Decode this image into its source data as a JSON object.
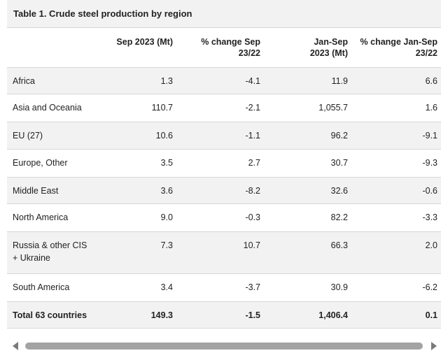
{
  "table": {
    "caption": "Table 1. Crude steel production by region",
    "headers": [
      "",
      "Sep 2023 (Mt)",
      "% change Sep 23/22",
      "Jan-Sep 2023 (Mt)",
      "% change Jan-Sep 23/22"
    ],
    "header_lines": [
      [
        ""
      ],
      [
        "Sep 2023 (Mt)"
      ],
      [
        "% change Sep",
        "23/22"
      ],
      [
        "Jan-Sep",
        "2023 (Mt)"
      ],
      [
        "% change Jan-Sep",
        "23/22"
      ]
    ],
    "rows": [
      {
        "region": "Africa",
        "sep": "1.3",
        "sep_change": "-4.1",
        "ytd": "11.9",
        "ytd_change": "6.6"
      },
      {
        "region": "Asia and Oceania",
        "sep": "110.7",
        "sep_change": "-2.1",
        "ytd": "1,055.7",
        "ytd_change": "1.6"
      },
      {
        "region": "EU (27)",
        "sep": "10.6",
        "sep_change": "-1.1",
        "ytd": "96.2",
        "ytd_change": "-9.1"
      },
      {
        "region": "Europe, Other",
        "sep": "3.5",
        "sep_change": "2.7",
        "ytd": "30.7",
        "ytd_change": "-9.3"
      },
      {
        "region": "Middle East",
        "sep": "3.6",
        "sep_change": "-8.2",
        "ytd": "32.6",
        "ytd_change": "-0.6"
      },
      {
        "region": "North America",
        "sep": "9.0",
        "sep_change": "-0.3",
        "ytd": "82.2",
        "ytd_change": "-3.3"
      },
      {
        "region": "Russia & other CIS + Ukraine",
        "region_lines": [
          "Russia & other CIS",
          "+ Ukraine"
        ],
        "sep": "7.3",
        "sep_change": "10.7",
        "ytd": "66.3",
        "ytd_change": "2.0"
      },
      {
        "region": "South America",
        "sep": "3.4",
        "sep_change": "-3.7",
        "ytd": "30.9",
        "ytd_change": "-6.2"
      }
    ],
    "total": {
      "region": "Total 63 countries",
      "sep": "149.3",
      "sep_change": "-1.5",
      "ytd": "1,406.4",
      "ytd_change": "0.1"
    }
  },
  "scrollbar": {
    "left_icon": "arrow-left-icon",
    "right_icon": "arrow-right-icon",
    "colors": {
      "thumb": "#a3a3a3",
      "arrow": "#7a7a7a"
    }
  },
  "colors": {
    "stripe": "#f2f2f2",
    "border": "#d6d6d6",
    "text": "#222222"
  }
}
